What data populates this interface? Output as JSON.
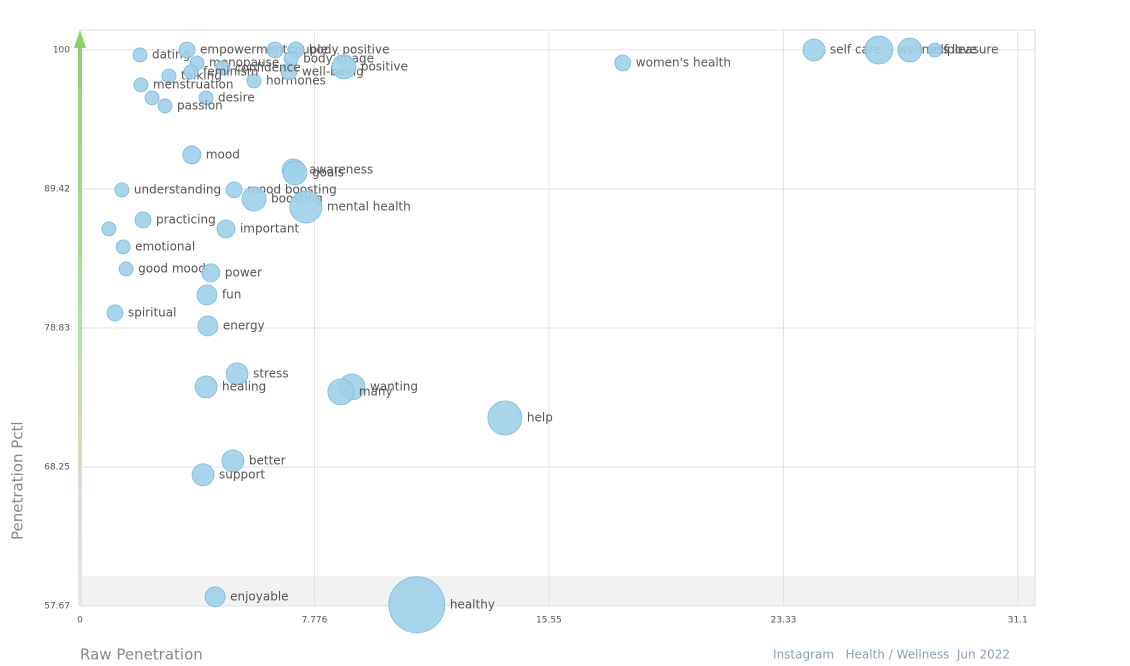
{
  "chart_data": {
    "type": "scatter",
    "xlabel": "Raw Penetration",
    "ylabel": "Penetration Pctl",
    "footer": "Instagram   Health / Wellness  Jun 2022",
    "color": "#9fd0ea",
    "xlim": [
      0,
      31.67
    ],
    "ylim": [
      57.67,
      101.52
    ],
    "xticks": [
      0,
      7.776,
      15.55,
      23.33,
      31.1
    ],
    "yticks": [
      57.67,
      68.25,
      78.83,
      89.42,
      100
    ],
    "grid": true,
    "labels": [
      "dating",
      "empowerment",
      "menopause",
      "couple",
      "body positive",
      "body image",
      "talking",
      "hormones",
      "well-being",
      "confidence",
      "desire",
      "feminism",
      "passion",
      "menstruation",
      null,
      "positive",
      "women's health",
      "self care",
      "wellness",
      "self love",
      "pleasure",
      "mood",
      "awareness",
      "goals",
      "understanding",
      "mood boosting",
      "boosting",
      "mental health",
      "practicing",
      null,
      "important",
      "emotional",
      "good mood",
      "power",
      "fun",
      "spiritual",
      "energy",
      "stress",
      "healing",
      "wanting",
      "many",
      "help",
      "better",
      "support",
      "enjoyable",
      "healthy"
    ],
    "x": [
      1.99,
      3.55,
      3.88,
      6.47,
      7.16,
      7.0,
      2.95,
      5.77,
      6.93,
      4.74,
      4.18,
      3.68,
      2.82,
      2.02,
      2.39,
      8.75,
      18.0,
      24.34,
      26.49,
      27.52,
      28.35,
      3.71,
      7.07,
      7.13,
      1.39,
      5.11,
      5.77,
      7.49,
      2.09,
      0.96,
      4.84,
      1.43,
      1.53,
      4.34,
      4.21,
      1.16,
      4.24,
      5.21,
      4.18,
      9.02,
      8.65,
      14.09,
      5.07,
      4.08,
      4.48,
      11.17
    ],
    "values": [
      99.62,
      100,
      99.01,
      100,
      100,
      99.32,
      98.02,
      97.64,
      98.33,
      98.63,
      96.35,
      98.33,
      95.74,
      97.34,
      96.35,
      98.71,
      99.01,
      100,
      100,
      100,
      100,
      92.01,
      90.87,
      90.64,
      89.35,
      89.35,
      88.66,
      88.05,
      87.06,
      86.38,
      86.38,
      85.01,
      83.33,
      83.03,
      81.35,
      79.98,
      78.99,
      75.34,
      74.35,
      74.35,
      73.97,
      71.99,
      68.72,
      67.66,
      58.37,
      57.76
    ],
    "sizes": [
      7,
      8,
      7,
      8,
      8,
      7,
      7,
      7,
      8,
      7,
      7,
      7,
      7,
      7,
      7,
      12,
      8,
      11,
      14,
      12,
      7,
      9,
      11,
      12,
      7,
      8,
      12,
      16,
      8,
      7,
      9,
      7,
      7,
      9,
      10,
      8,
      10,
      11,
      11,
      13,
      13,
      17,
      11,
      11,
      10,
      28
    ]
  }
}
